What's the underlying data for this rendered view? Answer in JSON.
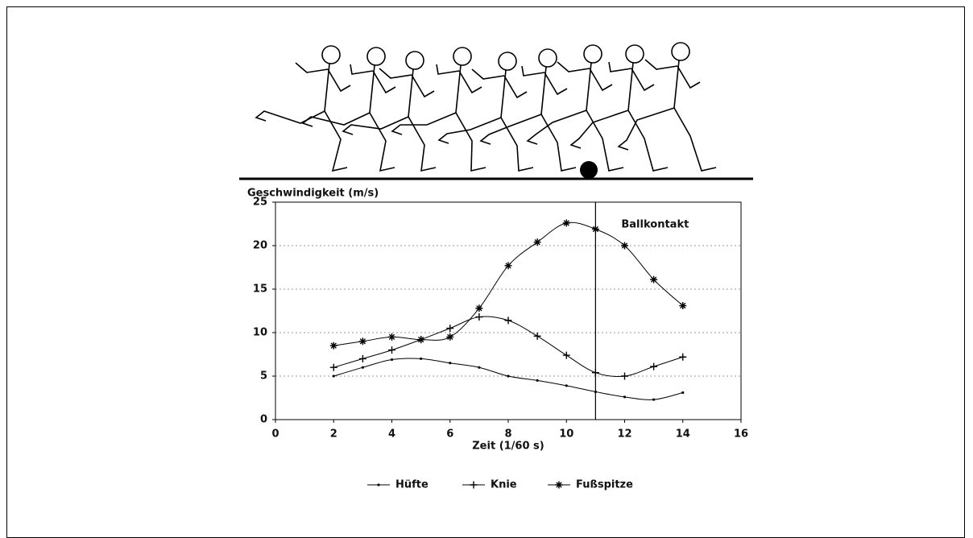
{
  "chart_data": {
    "type": "line",
    "y_label": "Geschwindigkeit (m/s)",
    "x_label": "Zeit (1/60 s)",
    "x": [
      2,
      3,
      4,
      5,
      6,
      7,
      8,
      9,
      10,
      11,
      12,
      13,
      14
    ],
    "series": [
      {
        "name": "Hüfte",
        "color": "#000000",
        "marker": "dot",
        "values": [
          5.0,
          6.0,
          6.9,
          7.0,
          6.5,
          6.0,
          5.0,
          4.5,
          3.9,
          3.2,
          2.6,
          2.3,
          3.1
        ]
      },
      {
        "name": "Knie",
        "color": "#000000",
        "marker": "plus",
        "values": [
          6.0,
          7.0,
          8.0,
          9.2,
          10.5,
          11.8,
          11.4,
          9.6,
          7.4,
          5.4,
          5.0,
          6.1,
          7.2
        ]
      },
      {
        "name": "Fußspitze",
        "color": "#000000",
        "marker": "star",
        "values": [
          8.5,
          9.0,
          9.5,
          9.2,
          9.5,
          12.8,
          17.7,
          20.4,
          22.6,
          21.9,
          20.0,
          16.1,
          13.1
        ]
      }
    ],
    "vline": {
      "x": 11,
      "label": "Ballkontakt"
    },
    "xlim": [
      0,
      16
    ],
    "xticks": [
      0,
      2,
      4,
      6,
      8,
      10,
      12,
      14,
      16
    ],
    "ylim": [
      0,
      25
    ],
    "yticks": [
      0,
      5,
      10,
      15,
      20,
      25
    ],
    "grid": true,
    "legend": "bottom"
  }
}
